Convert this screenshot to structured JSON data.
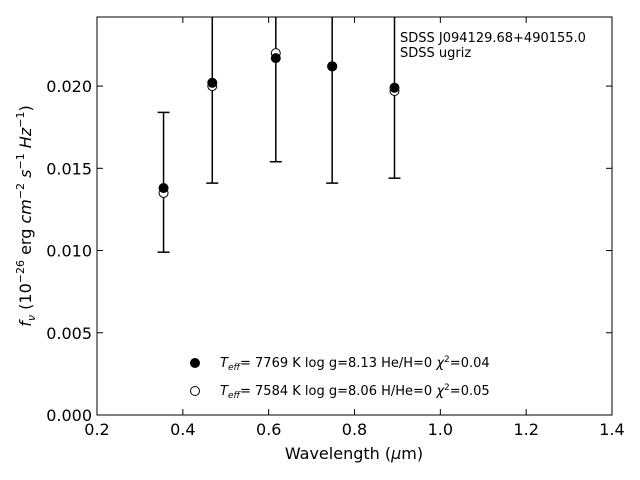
{
  "chart_data": {
    "type": "scatter",
    "title": "",
    "annotation": [
      "SDSS J094129.68+490155.0",
      "SDSS ugriz"
    ],
    "xlabel": "Wavelength (μm)",
    "ylabel": "f_ν (10^-26 erg cm^-2 s^-1 Hz^-1)",
    "xlim": [
      0.2,
      1.4
    ],
    "ylim": [
      0.0,
      0.0242
    ],
    "xticks": [
      0.2,
      0.4,
      0.6,
      0.8,
      1.0,
      1.2,
      1.4
    ],
    "xtick_labels": [
      "0.2",
      "0.4",
      "0.6",
      "0.8",
      "1.0",
      "1.2",
      "1.4"
    ],
    "yticks": [
      0.0,
      0.005,
      0.01,
      0.015,
      0.02
    ],
    "ytick_labels": [
      "0.000",
      "0.005",
      "0.010",
      "0.015",
      "0.020"
    ],
    "grid": false,
    "legend_position": "bottom-center",
    "errorbars": [
      {
        "x": 0.3551,
        "y": 0.0142,
        "low": 0.0099,
        "high": 0.0184
      },
      {
        "x": 0.4686,
        "y": 0.02,
        "low": 0.0141,
        "high": 0.0259
      },
      {
        "x": 0.6166,
        "y": 0.0185,
        "low": 0.0154,
        "high": 0.026
      },
      {
        "x": 0.748,
        "y": 0.019,
        "low": 0.0141,
        "high": 0.026
      },
      {
        "x": 0.8932,
        "y": 0.02,
        "low": 0.0144,
        "high": 0.026
      }
    ],
    "series": [
      {
        "name": "He/H=0",
        "marker": "filled-circle",
        "x": [
          0.3551,
          0.4686,
          0.6166,
          0.748,
          0.8932
        ],
        "y": [
          0.0138,
          0.0202,
          0.0217,
          0.0212,
          0.0199
        ],
        "legend_parts": {
          "teff": "7769",
          "logg": "8.13",
          "comp": "He/H=0",
          "chi2": "0.04"
        }
      },
      {
        "name": "H/He=0",
        "marker": "open-circle",
        "x": [
          0.3551,
          0.4686,
          0.6166,
          0.748,
          0.8932
        ],
        "y": [
          0.0135,
          0.02,
          0.022,
          0.0212,
          0.0197
        ],
        "legend_parts": {
          "teff": "7584",
          "logg": "8.06",
          "comp": "H/He=0",
          "chi2": "0.05"
        }
      }
    ]
  }
}
